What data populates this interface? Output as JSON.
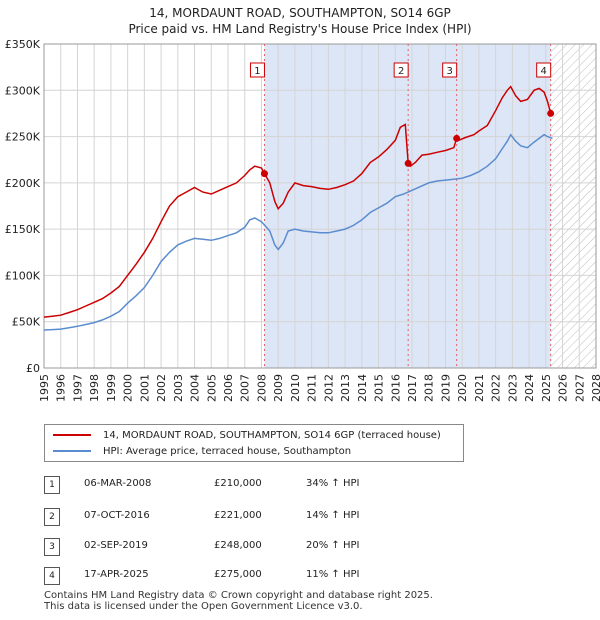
{
  "chart_data": {
    "type": "line",
    "title": "14, MORDAUNT ROAD, SOUTHAMPTON, SO14 6GP",
    "subtitle": "Price paid vs. HM Land Registry's House Price Index (HPI)",
    "xlabel": "",
    "ylabel": "",
    "xlim": [
      1995,
      2028
    ],
    "ylim": [
      0,
      350000
    ],
    "x_ticks": [
      1995,
      1996,
      1997,
      1998,
      1999,
      2000,
      2001,
      2002,
      2003,
      2004,
      2005,
      2006,
      2007,
      2008,
      2009,
      2010,
      2011,
      2012,
      2013,
      2014,
      2015,
      2016,
      2017,
      2018,
      2019,
      2020,
      2021,
      2022,
      2023,
      2024,
      2025,
      2026,
      2027,
      2028
    ],
    "y_ticks": [
      {
        "value": 0,
        "label": "£0"
      },
      {
        "value": 50000,
        "label": "£50K"
      },
      {
        "value": 100000,
        "label": "£100K"
      },
      {
        "value": 150000,
        "label": "£150K"
      },
      {
        "value": 200000,
        "label": "£200K"
      },
      {
        "value": 250000,
        "label": "£250K"
      },
      {
        "value": 300000,
        "label": "£300K"
      },
      {
        "value": 350000,
        "label": "£350K"
      }
    ],
    "series": [
      {
        "name": "14, MORDAUNT ROAD, SOUTHAMPTON, SO14 6GP (terraced house)",
        "color": "#cc0000",
        "x": [
          1995,
          1995.5,
          1996,
          1996.5,
          1997,
          1997.5,
          1998,
          1998.5,
          1999,
          1999.5,
          2000,
          2000.5,
          2001,
          2001.5,
          2002,
          2002.5,
          2003,
          2003.5,
          2004,
          2004.5,
          2005,
          2005.5,
          2006,
          2006.5,
          2007,
          2007.3,
          2007.6,
          2008.0,
          2008.18,
          2008.5,
          2008.8,
          2009.0,
          2009.3,
          2009.6,
          2010,
          2010.5,
          2011,
          2011.5,
          2012,
          2012.5,
          2013,
          2013.5,
          2014,
          2014.5,
          2015,
          2015.5,
          2016,
          2016.3,
          2016.6,
          2016.77,
          2016.9,
          2017.2,
          2017.6,
          2018,
          2018.5,
          2019,
          2019.5,
          2019.67,
          2019.8,
          2020.2,
          2020.7,
          2021,
          2021.5,
          2022,
          2022.4,
          2022.7,
          2022.9,
          2023.2,
          2023.5,
          2023.9,
          2024.3,
          2024.6,
          2024.9,
          2025.1,
          2025.29,
          2025.4
        ],
        "values": [
          55000,
          56000,
          57000,
          60000,
          63000,
          67000,
          71000,
          75000,
          81000,
          88000,
          100000,
          112000,
          125000,
          140000,
          158000,
          175000,
          185000,
          190000,
          195000,
          190000,
          188000,
          192000,
          196000,
          200000,
          208000,
          214000,
          218000,
          216000,
          210000,
          200000,
          180000,
          172000,
          178000,
          190000,
          200000,
          197000,
          196000,
          194000,
          193000,
          195000,
          198000,
          202000,
          210000,
          222000,
          228000,
          236000,
          246000,
          260000,
          263000,
          221000,
          218000,
          222000,
          230000,
          231000,
          233000,
          235000,
          238000,
          248000,
          246000,
          249000,
          252000,
          256000,
          262000,
          278000,
          292000,
          300000,
          304000,
          294000,
          288000,
          290000,
          300000,
          302000,
          298000,
          288000,
          275000,
          273000
        ]
      },
      {
        "name": "HPI: Average price, terraced house, Southampton",
        "color": "#5b8ccf",
        "x": [
          1995,
          1995.5,
          1996,
          1996.5,
          1997,
          1997.5,
          1998,
          1998.5,
          1999,
          1999.5,
          2000,
          2000.5,
          2001,
          2001.5,
          2002,
          2002.5,
          2003,
          2003.5,
          2004,
          2004.5,
          2005,
          2005.5,
          2006,
          2006.5,
          2007,
          2007.3,
          2007.6,
          2008,
          2008.5,
          2008.8,
          2009.0,
          2009.3,
          2009.6,
          2010,
          2010.5,
          2011,
          2011.5,
          2012,
          2012.5,
          2013,
          2013.5,
          2014,
          2014.5,
          2015,
          2015.5,
          2016,
          2016.5,
          2017,
          2017.5,
          2018,
          2018.5,
          2019,
          2019.5,
          2020,
          2020.5,
          2021,
          2021.5,
          2022,
          2022.4,
          2022.7,
          2022.9,
          2023.2,
          2023.5,
          2023.9,
          2024.3,
          2024.6,
          2024.9,
          2025.1,
          2025.4
        ],
        "values": [
          41000,
          41500,
          42000,
          43500,
          45000,
          47000,
          49000,
          52000,
          56000,
          61000,
          70000,
          78000,
          87000,
          100000,
          115000,
          125000,
          133000,
          137000,
          140000,
          139000,
          138000,
          140000,
          143000,
          146000,
          152000,
          160000,
          162000,
          158000,
          148000,
          133000,
          128000,
          135000,
          148000,
          150000,
          148000,
          147000,
          146000,
          146000,
          148000,
          150000,
          154000,
          160000,
          168000,
          173000,
          178000,
          185000,
          188000,
          192000,
          196000,
          200000,
          202000,
          203000,
          204000,
          205000,
          208000,
          212000,
          218000,
          226000,
          237000,
          245000,
          252000,
          245000,
          240000,
          238000,
          244000,
          248000,
          252000,
          250000,
          248000
        ]
      }
    ],
    "sales": [
      {
        "label": "1",
        "x": 2008.18,
        "y": 210000
      },
      {
        "label": "2",
        "x": 2016.77,
        "y": 221000
      },
      {
        "label": "3",
        "x": 2019.67,
        "y": 248000
      },
      {
        "label": "4",
        "x": 2025.29,
        "y": 275000
      }
    ],
    "shade_range": [
      2008.18,
      2025.29
    ],
    "hatch_from": 2025.29
  },
  "legend": {
    "series1": "14, MORDAUNT ROAD, SOUTHAMPTON, SO14 6GP (terraced house)",
    "series2": "HPI: Average price, terraced house, Southampton"
  },
  "sales_table": [
    {
      "num": "1",
      "date": "06-MAR-2008",
      "price": "£210,000",
      "hpi": "34% ↑ HPI"
    },
    {
      "num": "2",
      "date": "07-OCT-2016",
      "price": "£221,000",
      "hpi": "14% ↑ HPI"
    },
    {
      "num": "3",
      "date": "02-SEP-2019",
      "price": "£248,000",
      "hpi": "20% ↑ HPI"
    },
    {
      "num": "4",
      "date": "17-APR-2025",
      "price": "£275,000",
      "hpi": "11% ↑ HPI"
    }
  ],
  "footer": {
    "line1": "Contains HM Land Registry data © Crown copyright and database right 2025.",
    "line2": "This data is licensed under the Open Government Licence v3.0."
  }
}
